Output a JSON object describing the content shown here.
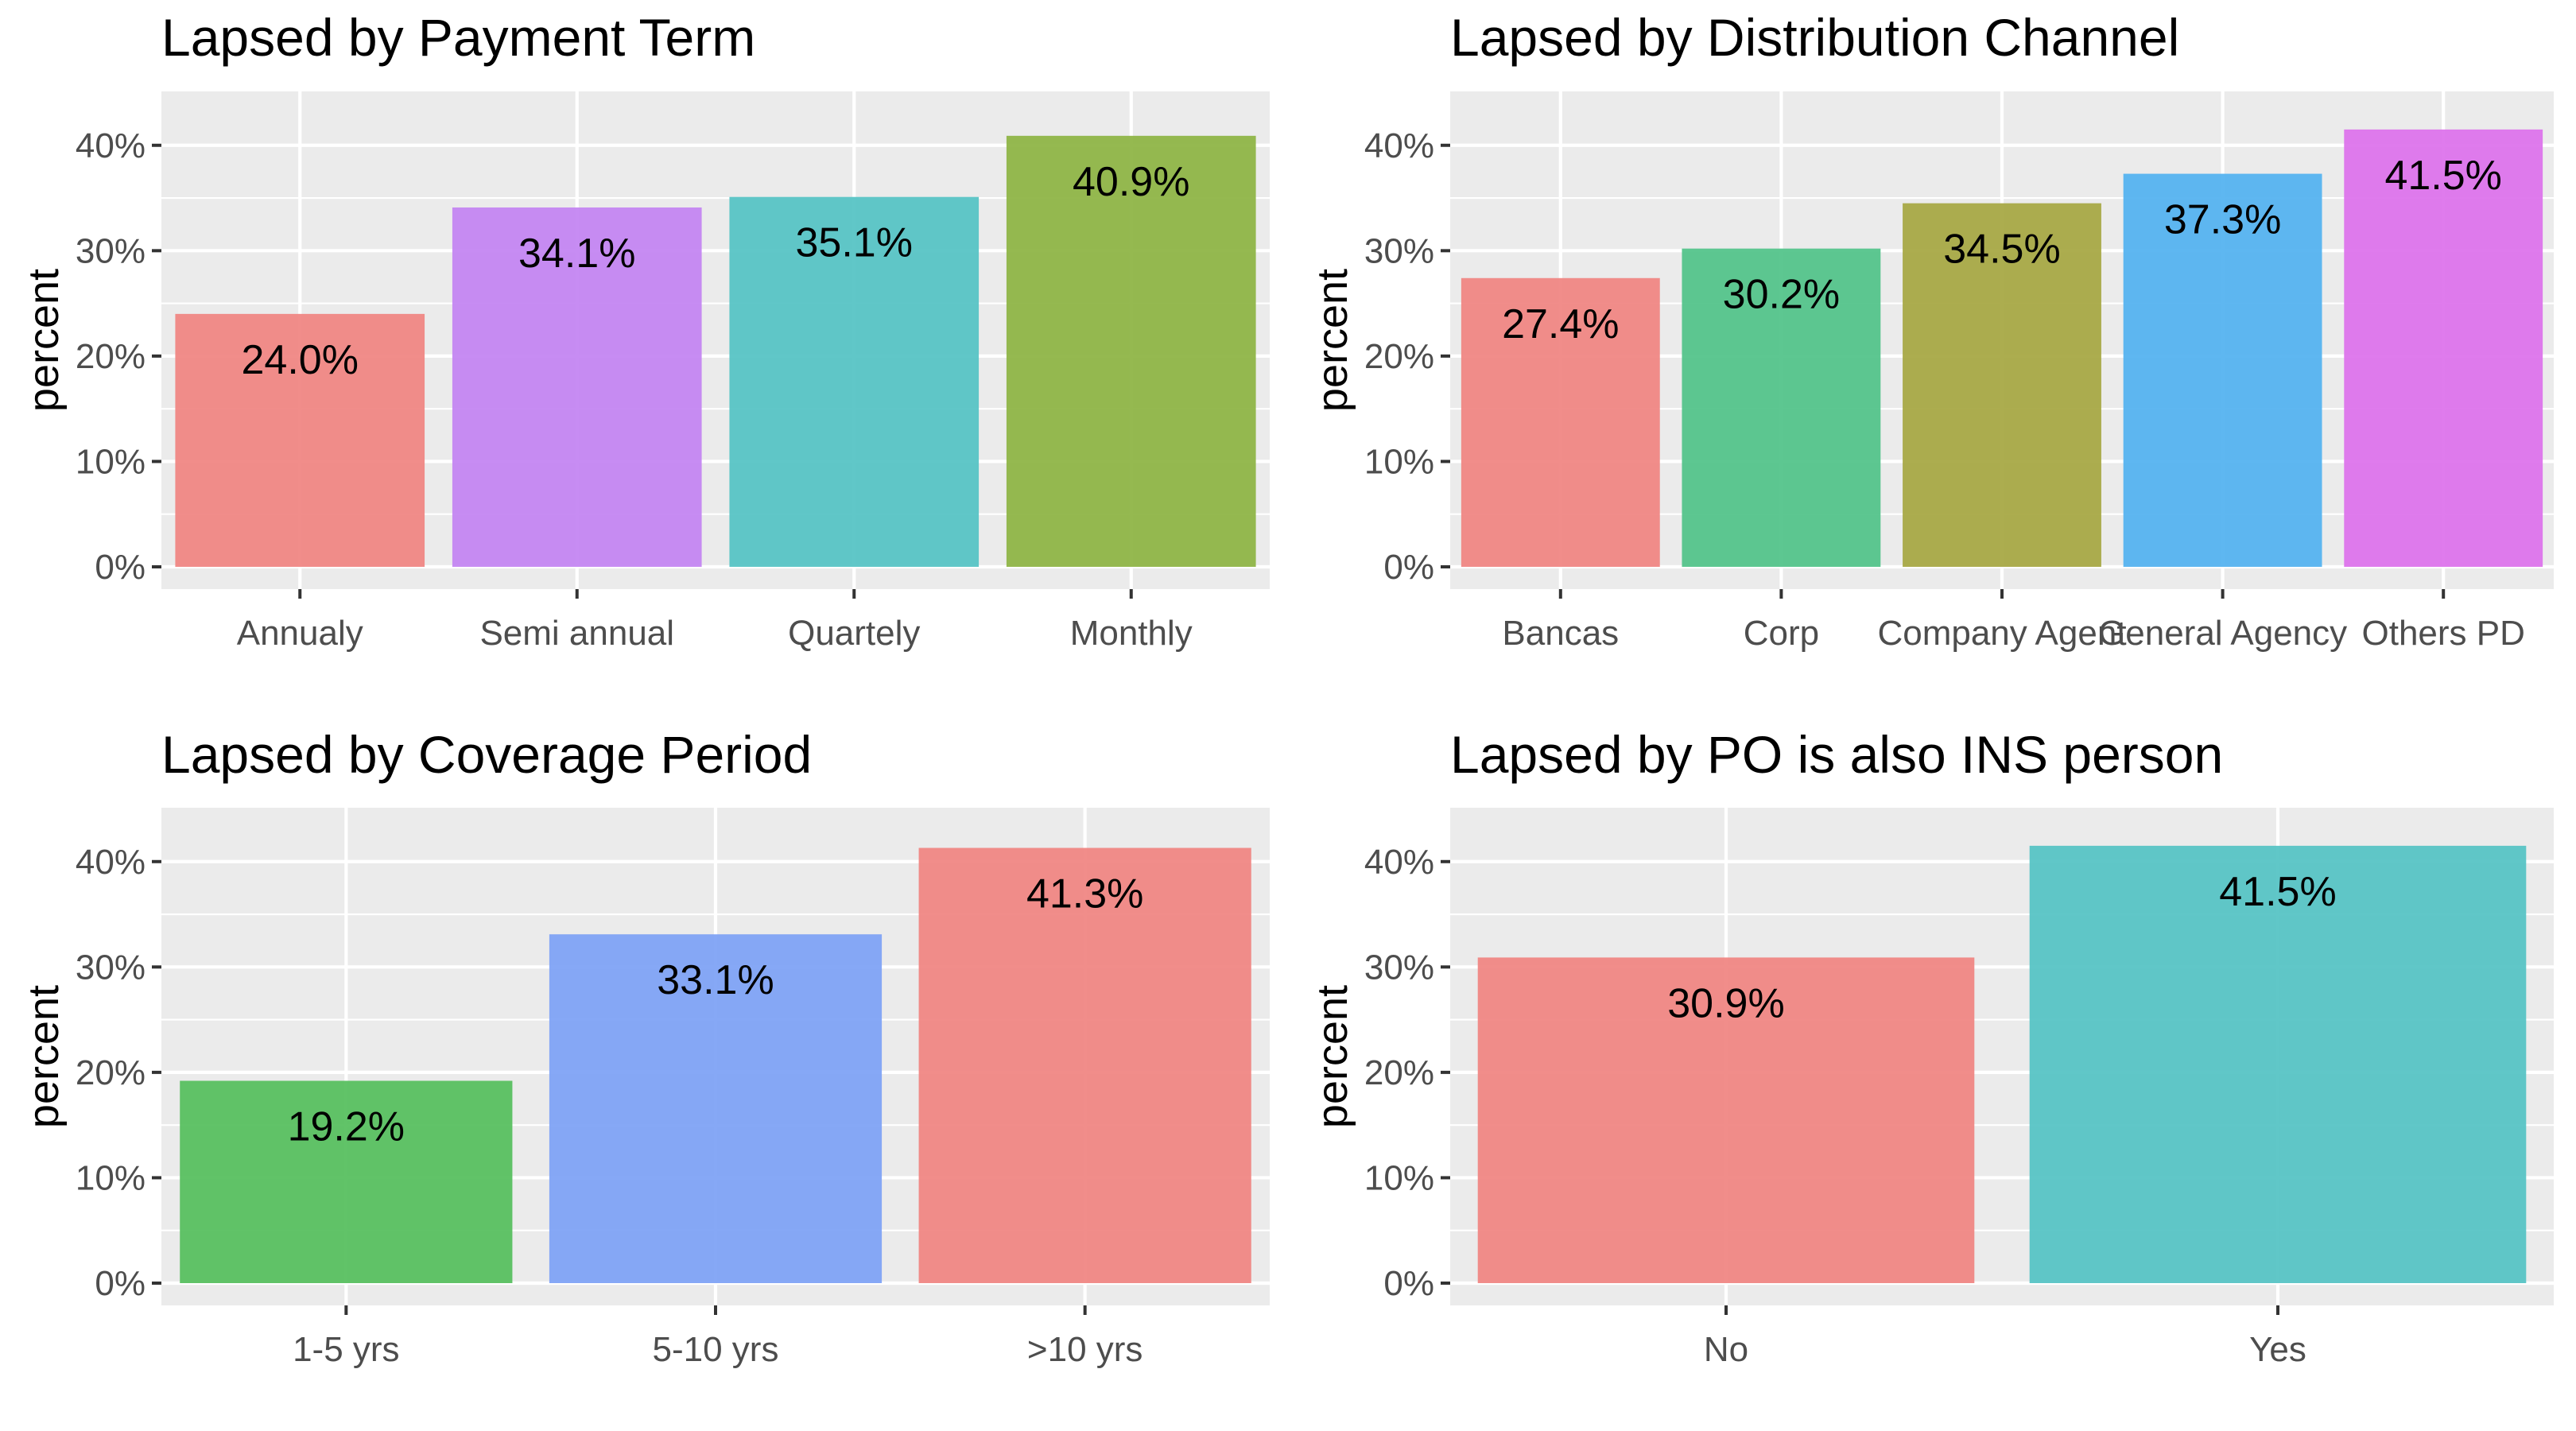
{
  "chart_data": [
    {
      "type": "bar",
      "title": "Lapsed by Payment Term",
      "xlabel": "",
      "ylabel": "percent",
      "ylim": [
        0,
        43
      ],
      "yticks": [
        0,
        10,
        20,
        30,
        40
      ],
      "ytick_labels": [
        "0%",
        "10%",
        "20%",
        "30%",
        "40%"
      ],
      "grid": true,
      "legend": "none",
      "categories": [
        "Annualy",
        "Semi annual",
        "Quartely",
        "Monthly"
      ],
      "values": [
        24.0,
        34.1,
        35.1,
        40.9
      ],
      "labels": [
        "24.0%",
        "34.1%",
        "35.1%",
        "40.9%"
      ],
      "colors": [
        "#F08683",
        "#C485F2",
        "#56C3C5",
        "#8EB545"
      ]
    },
    {
      "type": "bar",
      "title": "Lapsed by Distribution Channel",
      "xlabel": "",
      "ylabel": "percent",
      "ylim": [
        0,
        43
      ],
      "yticks": [
        0,
        10,
        20,
        30,
        40
      ],
      "ytick_labels": [
        "0%",
        "10%",
        "20%",
        "30%",
        "40%"
      ],
      "grid": true,
      "legend": "none",
      "categories": [
        "Bancas",
        "Corp",
        "Company Agent",
        "General Agency",
        "Others PD"
      ],
      "values": [
        27.4,
        30.2,
        34.5,
        37.3,
        41.5
      ],
      "labels": [
        "27.4%",
        "30.2%",
        "34.5%",
        "37.3%",
        "41.5%"
      ],
      "colors": [
        "#F08683",
        "#53C48A",
        "#A7A844",
        "#54B3F0",
        "#DD73EC"
      ]
    },
    {
      "type": "bar",
      "title": "Lapsed by Coverage Period",
      "xlabel": "",
      "ylabel": "percent",
      "ylim": [
        0,
        43
      ],
      "yticks": [
        0,
        10,
        20,
        30,
        40
      ],
      "ytick_labels": [
        "0%",
        "10%",
        "20%",
        "30%",
        "40%"
      ],
      "grid": true,
      "legend": "none",
      "categories": [
        "1-5 yrs",
        "5-10 yrs",
        ">10 yrs"
      ],
      "values": [
        19.2,
        33.1,
        41.3
      ],
      "labels": [
        "19.2%",
        "33.1%",
        "41.3%"
      ],
      "colors": [
        "#57BF5F",
        "#7EA3F5",
        "#F08683"
      ]
    },
    {
      "type": "bar",
      "title": "Lapsed by PO is also INS person",
      "xlabel": "",
      "ylabel": "percent",
      "ylim": [
        0,
        43
      ],
      "yticks": [
        0,
        10,
        20,
        30,
        40
      ],
      "ytick_labels": [
        "0%",
        "10%",
        "20%",
        "30%",
        "40%"
      ],
      "grid": true,
      "legend": "none",
      "categories": [
        "No",
        "Yes"
      ],
      "values": [
        30.9,
        41.5
      ],
      "labels": [
        "30.9%",
        "41.5%"
      ],
      "colors": [
        "#F08683",
        "#56C3C5"
      ]
    }
  ]
}
